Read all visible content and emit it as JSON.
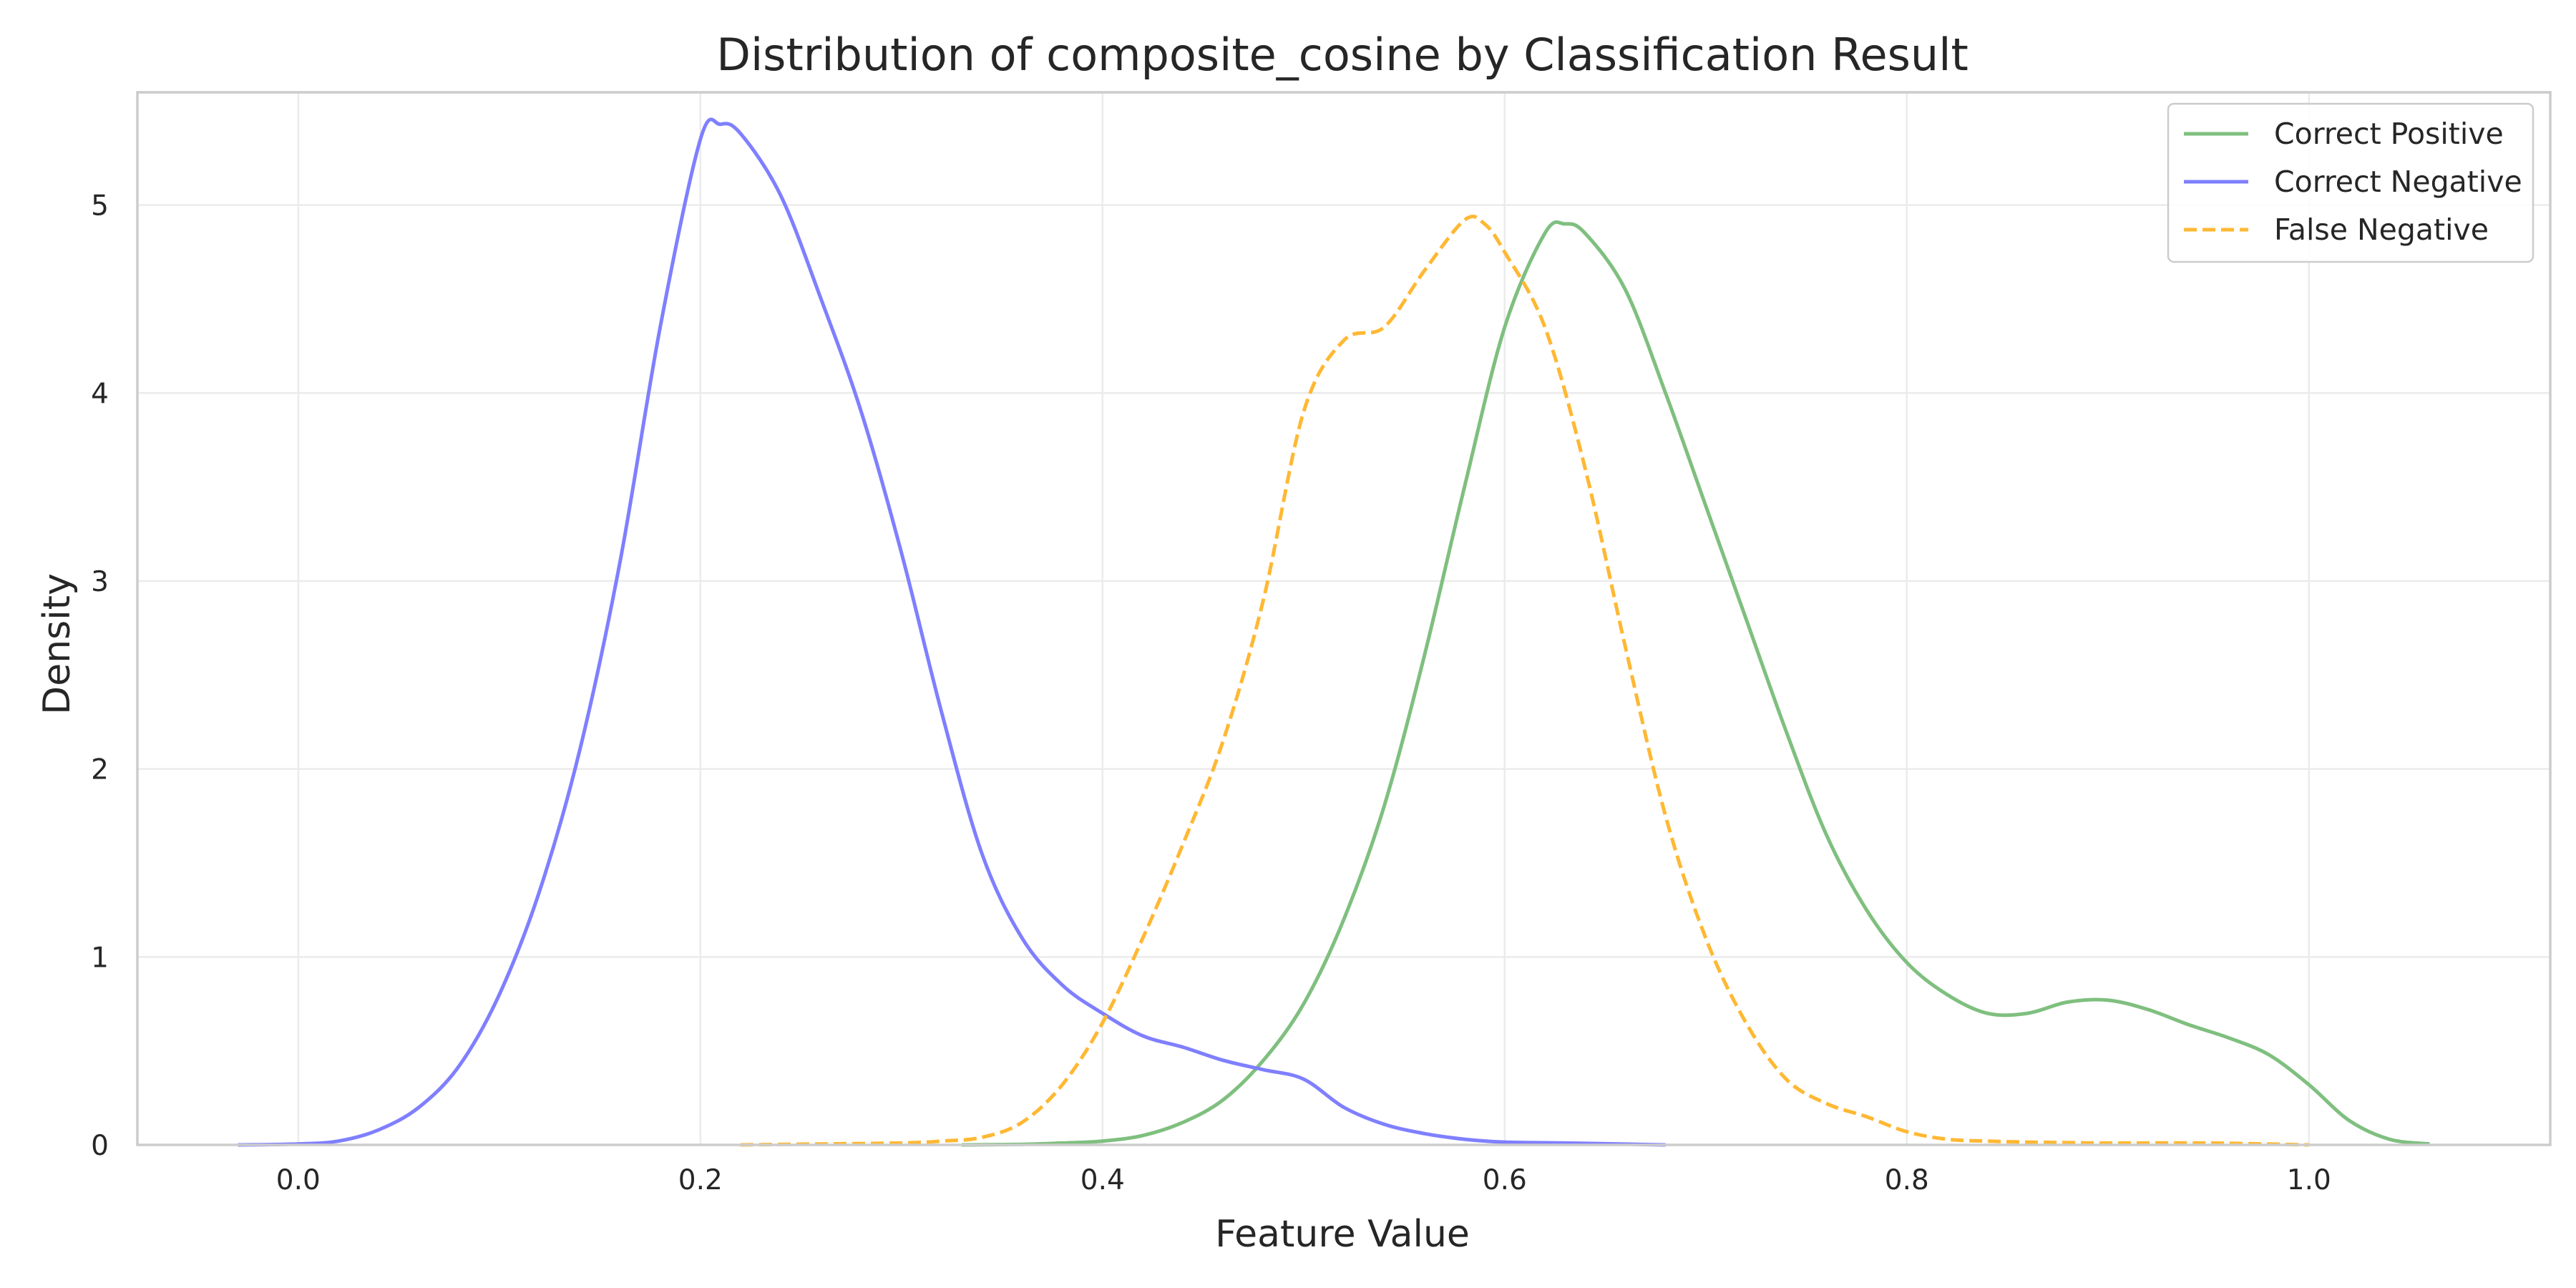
{
  "chart_data": {
    "type": "line",
    "title": "Distribution of composite_cosine by Classification Result",
    "xlabel": "Feature Value",
    "ylabel": "Density",
    "xlim": [
      -0.08,
      1.12
    ],
    "ylim": [
      0,
      5.6
    ],
    "xticks": [
      0.0,
      0.2,
      0.4,
      0.6,
      0.8,
      1.0
    ],
    "xtick_labels": [
      "0.0",
      "0.2",
      "0.4",
      "0.6",
      "0.8",
      "1.0"
    ],
    "yticks": [
      0,
      1,
      2,
      3,
      4,
      5
    ],
    "ytick_labels": [
      "0",
      "1",
      "2",
      "3",
      "4",
      "5"
    ],
    "grid": true,
    "legend_position": "top-right",
    "series": [
      {
        "name": "Correct Positive",
        "color": "#7fbf7f",
        "dashed": false,
        "points": [
          [
            0.33,
            0.0
          ],
          [
            0.36,
            0.003
          ],
          [
            0.38,
            0.01
          ],
          [
            0.4,
            0.02
          ],
          [
            0.42,
            0.05
          ],
          [
            0.44,
            0.12
          ],
          [
            0.46,
            0.24
          ],
          [
            0.48,
            0.45
          ],
          [
            0.5,
            0.75
          ],
          [
            0.52,
            1.2
          ],
          [
            0.54,
            1.8
          ],
          [
            0.56,
            2.6
          ],
          [
            0.58,
            3.5
          ],
          [
            0.6,
            4.35
          ],
          [
            0.62,
            4.85
          ],
          [
            0.63,
            4.9
          ],
          [
            0.64,
            4.85
          ],
          [
            0.66,
            4.55
          ],
          [
            0.68,
            4.0
          ],
          [
            0.7,
            3.4
          ],
          [
            0.72,
            2.8
          ],
          [
            0.74,
            2.2
          ],
          [
            0.76,
            1.65
          ],
          [
            0.78,
            1.25
          ],
          [
            0.8,
            0.97
          ],
          [
            0.82,
            0.8
          ],
          [
            0.84,
            0.7
          ],
          [
            0.86,
            0.7
          ],
          [
            0.88,
            0.76
          ],
          [
            0.9,
            0.77
          ],
          [
            0.92,
            0.72
          ],
          [
            0.94,
            0.64
          ],
          [
            0.96,
            0.57
          ],
          [
            0.98,
            0.48
          ],
          [
            1.0,
            0.32
          ],
          [
            1.02,
            0.13
          ],
          [
            1.04,
            0.03
          ],
          [
            1.06,
            0.005
          ]
        ]
      },
      {
        "name": "Correct Negative",
        "color": "#7f7fff",
        "dashed": false,
        "points": [
          [
            -0.03,
            0.0
          ],
          [
            0.0,
            0.005
          ],
          [
            0.02,
            0.02
          ],
          [
            0.04,
            0.08
          ],
          [
            0.06,
            0.2
          ],
          [
            0.08,
            0.42
          ],
          [
            0.1,
            0.8
          ],
          [
            0.12,
            1.35
          ],
          [
            0.14,
            2.1
          ],
          [
            0.16,
            3.1
          ],
          [
            0.18,
            4.35
          ],
          [
            0.2,
            5.35
          ],
          [
            0.21,
            5.43
          ],
          [
            0.22,
            5.38
          ],
          [
            0.24,
            5.05
          ],
          [
            0.26,
            4.5
          ],
          [
            0.28,
            3.9
          ],
          [
            0.3,
            3.15
          ],
          [
            0.32,
            2.3
          ],
          [
            0.34,
            1.55
          ],
          [
            0.36,
            1.1
          ],
          [
            0.38,
            0.85
          ],
          [
            0.4,
            0.7
          ],
          [
            0.42,
            0.58
          ],
          [
            0.44,
            0.52
          ],
          [
            0.46,
            0.45
          ],
          [
            0.48,
            0.4
          ],
          [
            0.5,
            0.35
          ],
          [
            0.52,
            0.2
          ],
          [
            0.54,
            0.11
          ],
          [
            0.56,
            0.06
          ],
          [
            0.58,
            0.03
          ],
          [
            0.6,
            0.015
          ],
          [
            0.63,
            0.01
          ],
          [
            0.68,
            0.0
          ]
        ]
      },
      {
        "name": "False Negative",
        "color": "#ffb833",
        "dashed": true,
        "points": [
          [
            0.22,
            0.0
          ],
          [
            0.26,
            0.005
          ],
          [
            0.3,
            0.01
          ],
          [
            0.32,
            0.02
          ],
          [
            0.34,
            0.04
          ],
          [
            0.36,
            0.12
          ],
          [
            0.38,
            0.32
          ],
          [
            0.4,
            0.65
          ],
          [
            0.42,
            1.1
          ],
          [
            0.44,
            1.6
          ],
          [
            0.46,
            2.15
          ],
          [
            0.48,
            2.9
          ],
          [
            0.5,
            3.9
          ],
          [
            0.52,
            4.28
          ],
          [
            0.54,
            4.35
          ],
          [
            0.56,
            4.65
          ],
          [
            0.58,
            4.92
          ],
          [
            0.59,
            4.9
          ],
          [
            0.6,
            4.75
          ],
          [
            0.62,
            4.35
          ],
          [
            0.64,
            3.6
          ],
          [
            0.66,
            2.65
          ],
          [
            0.68,
            1.75
          ],
          [
            0.7,
            1.1
          ],
          [
            0.72,
            0.65
          ],
          [
            0.74,
            0.35
          ],
          [
            0.76,
            0.22
          ],
          [
            0.78,
            0.15
          ],
          [
            0.8,
            0.07
          ],
          [
            0.82,
            0.03
          ],
          [
            0.84,
            0.02
          ],
          [
            0.86,
            0.015
          ],
          [
            0.9,
            0.01
          ],
          [
            0.95,
            0.01
          ],
          [
            1.0,
            0.0
          ]
        ]
      }
    ]
  }
}
